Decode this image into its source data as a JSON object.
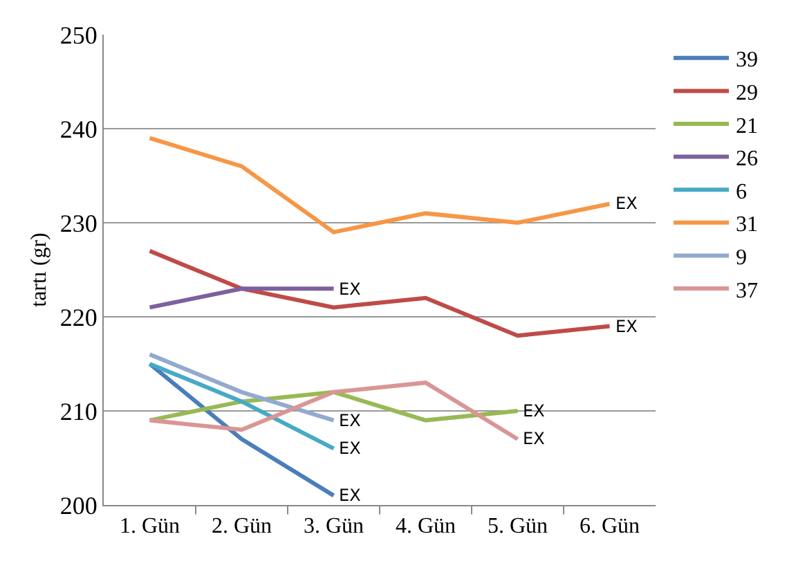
{
  "chart_data": {
    "type": "line",
    "ylabel": "tartı (gr)",
    "categories": [
      "1. Gün",
      "2. Gün",
      "3. Gün",
      "4. Gün",
      "5. Gün",
      "6. Gün"
    ],
    "series": [
      {
        "name": "39",
        "color": "#4a7ebb",
        "values": [
          215,
          207,
          201,
          null,
          null,
          null
        ]
      },
      {
        "name": "29",
        "color": "#be4b48",
        "values": [
          227,
          223,
          221,
          222,
          218,
          219
        ]
      },
      {
        "name": "21",
        "color": "#98b954",
        "values": [
          209,
          211,
          212,
          209,
          210,
          null
        ]
      },
      {
        "name": "26",
        "color": "#7d60a0",
        "values": [
          221,
          223,
          223,
          null,
          null,
          null
        ]
      },
      {
        "name": "6",
        "color": "#46aac5",
        "values": [
          215,
          211,
          206,
          null,
          null,
          null
        ]
      },
      {
        "name": "31",
        "color": "#f79646",
        "values": [
          239,
          236,
          229,
          231,
          230,
          232
        ]
      },
      {
        "name": "9",
        "color": "#93a9cf",
        "values": [
          216,
          212,
          209,
          null,
          null,
          null
        ]
      },
      {
        "name": "37",
        "color": "#d99694",
        "values": [
          209,
          208,
          212,
          213,
          207,
          null
        ]
      }
    ],
    "annotations": [
      {
        "text": "EX",
        "x": "3. Gün",
        "y": 201
      },
      {
        "text": "EX",
        "x": "6. Gün",
        "y": 219
      },
      {
        "text": "EX",
        "x": "5. Gün",
        "y": 210
      },
      {
        "text": "EX",
        "x": "3. Gün",
        "y": 223
      },
      {
        "text": "EX",
        "x": "3. Gün",
        "y": 206
      },
      {
        "text": "EX",
        "x": "6. Gün",
        "y": 232
      },
      {
        "text": "EX",
        "x": "3. Gün",
        "y": 209
      },
      {
        "text": "EX",
        "x": "5. Gün",
        "y": 207
      }
    ],
    "ylim": [
      200,
      250
    ],
    "yticks": [
      200,
      210,
      220,
      230,
      240,
      250
    ],
    "grid": "y",
    "legend": "right",
    "marker": "none",
    "line_style": "solid"
  }
}
